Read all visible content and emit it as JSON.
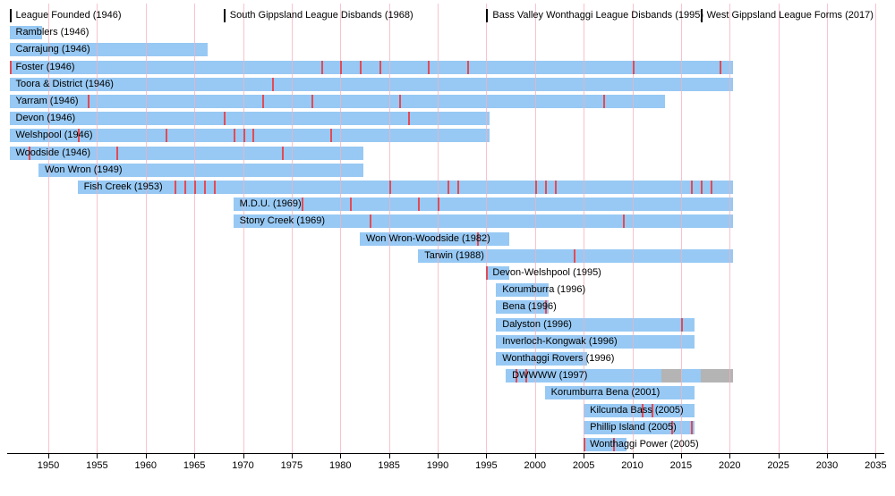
{
  "chart_data": {
    "type": "gantt",
    "x_axis": {
      "start_year": 1950,
      "end_year": 2035,
      "step": 5,
      "tick_labels": [
        "1950",
        "1955",
        "1960",
        "1965",
        "1970",
        "1975",
        "1980",
        "1985",
        "1990",
        "1995",
        "2000",
        "2005",
        "2010",
        "2015",
        "2020",
        "2025",
        "2030",
        "2035"
      ]
    },
    "milestones": [
      {
        "label": "League Founded (1946)",
        "year": 1946
      },
      {
        "label": "South Gippsland League Disbands (1968)",
        "year": 1968
      },
      {
        "label": "Bass Valley Wonthaggi League Disbands (1995)",
        "year": 1995
      },
      {
        "label": "West Gippsland League Forms (2017)",
        "year": 2017
      }
    ],
    "bars": [
      {
        "label": "Ramblers (1946)",
        "start": 1946,
        "end": 1949,
        "premiership_years": []
      },
      {
        "label": "Carrajung (1946)",
        "start": 1946,
        "end": 1966,
        "premiership_years": []
      },
      {
        "label": "Foster (1946)",
        "start": 1946,
        "end": 2020,
        "premiership_years": [
          1946,
          1978,
          1980,
          1982,
          1984,
          1989,
          1993,
          2010,
          2019
        ]
      },
      {
        "label": "Toora & District (1946)",
        "start": 1946,
        "end": 2020,
        "premiership_years": [
          1973
        ]
      },
      {
        "label": "Yarram (1946)",
        "start": 1946,
        "end": 2013,
        "premiership_years": [
          1954,
          1972,
          1977,
          1986,
          2007
        ]
      },
      {
        "label": "Devon (1946)",
        "start": 1946,
        "end": 1995,
        "premiership_years": [
          1968,
          1987
        ]
      },
      {
        "label": "Welshpool (1946)",
        "start": 1946,
        "end": 1995,
        "premiership_years": [
          1953,
          1962,
          1969,
          1970,
          1971,
          1979
        ]
      },
      {
        "label": "Woodside (1946)",
        "start": 1946,
        "end": 1982,
        "premiership_years": [
          1948,
          1957,
          1974
        ]
      },
      {
        "label": "Won Wron (1949)",
        "start": 1949,
        "end": 1982,
        "premiership_years": []
      },
      {
        "label": "Fish Creek (1953)",
        "start": 1953,
        "end": 2020,
        "premiership_years": [
          1963,
          1964,
          1965,
          1966,
          1967,
          1985,
          1991,
          1992,
          2000,
          2001,
          2002,
          2016,
          2017,
          2018
        ]
      },
      {
        "label": "M.D.U. (1969)",
        "start": 1969,
        "end": 2020,
        "premiership_years": [
          1976,
          1981,
          1988,
          1990
        ]
      },
      {
        "label": "Stony Creek (1969)",
        "start": 1969,
        "end": 2020,
        "premiership_years": [
          1983,
          2009
        ]
      },
      {
        "label": "Won Wron-Woodside (1982)",
        "start": 1982,
        "end": 1997,
        "premiership_years": [
          1994
        ]
      },
      {
        "label": "Tarwin (1988)",
        "start": 1988,
        "end": 2020,
        "premiership_years": [
          2004
        ]
      },
      {
        "label": "Devon-Welshpool (1995)",
        "start": 1995,
        "end": 1997,
        "premiership_years": [
          1995
        ]
      },
      {
        "label": "Korumburra (1996)",
        "start": 1996,
        "end": 2001,
        "premiership_years": []
      },
      {
        "label": "Bena (1996)",
        "start": 1996,
        "end": 2001,
        "premiership_years": [
          2001
        ]
      },
      {
        "label": "Dalyston (1996)",
        "start": 1996,
        "end": 2016,
        "premiership_years": [
          2015
        ]
      },
      {
        "label": "Inverloch-Kongwak (1996)",
        "start": 1996,
        "end": 2016,
        "premiership_years": []
      },
      {
        "label": "Wonthaggi Rovers (1996)",
        "start": 1996,
        "end": 2005,
        "premiership_years": []
      },
      {
        "label": "DWWWW (1997)",
        "start": 1997,
        "end": 2020,
        "premiership_years": [
          1998,
          1999
        ],
        "segments": [
          {
            "from": 1997,
            "to": 2013,
            "state": "active"
          },
          {
            "from": 2013,
            "to": 2015,
            "state": "recess"
          },
          {
            "from": 2015,
            "to": 2017,
            "state": "active"
          },
          {
            "from": 2017,
            "to": 2020,
            "state": "recess"
          }
        ]
      },
      {
        "label": "Korumburra Bena (2001)",
        "start": 2001,
        "end": 2016,
        "premiership_years": []
      },
      {
        "label": "Kilcunda Bass (2005)",
        "start": 2005,
        "end": 2016,
        "premiership_years": [
          2011,
          2012
        ]
      },
      {
        "label": "Phillip Island (2005)",
        "start": 2005,
        "end": 2016,
        "premiership_years": [
          2014,
          2016
        ]
      },
      {
        "label": "Wonthaggi Power (2005)",
        "start": 2005,
        "end": 2009,
        "premiership_years": [
          2005,
          2008
        ]
      }
    ]
  },
  "colors": {
    "bar": "#97c9f4",
    "recess": "#b4b4b4",
    "premiership_tick": "#e34b55",
    "gridline": "#f5afbe",
    "axis": "#000000",
    "text": "#000000",
    "background": "#ffffff"
  }
}
